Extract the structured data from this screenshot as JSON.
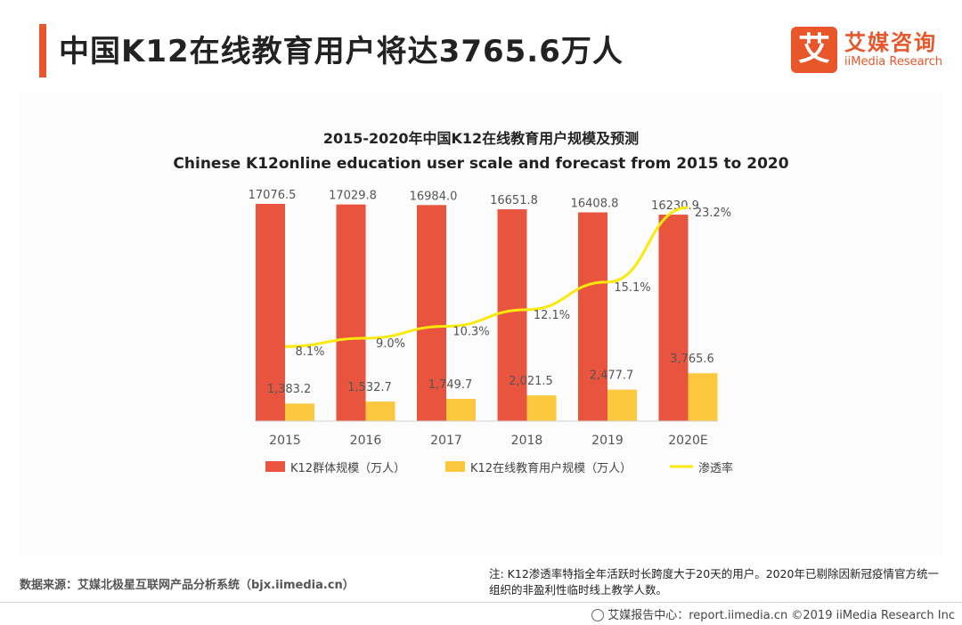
{
  "header": {
    "title": "中国K12在线教育用户将达3765.6万人"
  },
  "logo": {
    "mark": "艾",
    "name_cn": "艾媒咨询",
    "name_en": "iiMedia Research"
  },
  "colors": {
    "accent": "#e8562a",
    "bar_total": "#e9543f",
    "bar_online": "#fcc93e",
    "line_rate": "#fbe90a"
  },
  "chart_data": {
    "type": "bar",
    "title": "2015-2020年中国K12在线教育用户规模及预测",
    "subtitle": "Chinese K12online education user scale and forecast from 2015 to 2020",
    "categories": [
      "2015",
      "2016",
      "2017",
      "2018",
      "2019",
      "2020E"
    ],
    "series": [
      {
        "name": "K12群体规模（万人）",
        "type": "bar",
        "values": [
          17076.5,
          17029.8,
          16984.0,
          16651.8,
          16408.8,
          16230.9
        ],
        "labels": [
          "17076.5",
          "17029.8",
          "16984.0",
          "16651.8",
          "16408.8",
          "16230.9"
        ]
      },
      {
        "name": "K12在线教育用户规模（万人）",
        "type": "bar",
        "values": [
          1383.2,
          1532.7,
          1749.7,
          2021.5,
          2477.7,
          3765.6
        ],
        "labels": [
          "1,383.2",
          "1,532.7",
          "1,749.7",
          "2,021.5",
          "2,477.7",
          "3,765.6"
        ]
      },
      {
        "name": "渗透率",
        "type": "line",
        "axis": "secondary",
        "values": [
          8.1,
          9.0,
          10.3,
          12.1,
          15.1,
          23.2
        ],
        "labels": [
          "8.1%",
          "9.0%",
          "10.3%",
          "12.1%",
          "15.1%",
          "23.2%"
        ]
      }
    ],
    "legend": "bottom"
  },
  "source": "数据来源：艾媒北极星互联网产品分析系统（bjx.iimedia.cn）",
  "note": "注: K12渗透率特指全年活跃时长跨度大于20天的用户。2020年已剔除因新冠疫情官方统一组织的非盈利性临时线上教学人数。",
  "footer": "艾媒报告中心：report.iimedia.cn  ©2019  iiMedia Research  Inc"
}
